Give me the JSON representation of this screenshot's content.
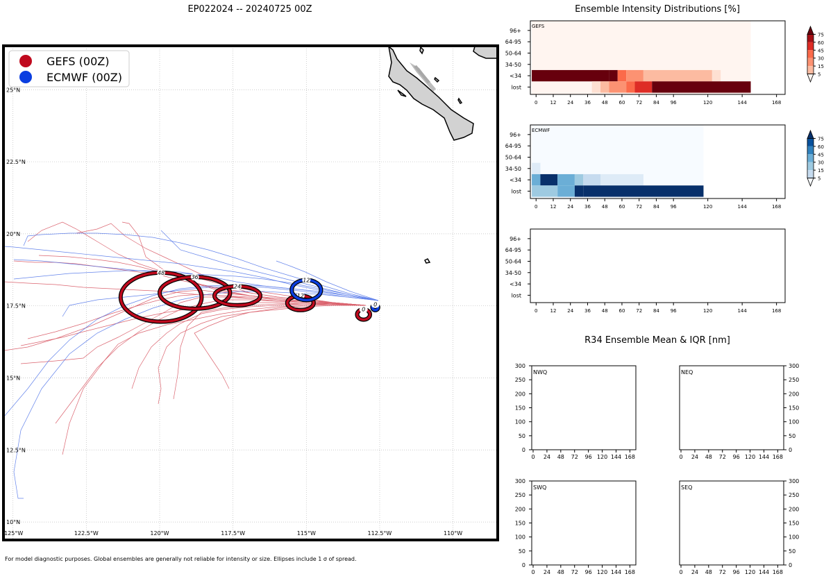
{
  "map": {
    "title": "EP022024 -- 20240725 00Z",
    "lon_min": -125.3,
    "lon_max": -108.5,
    "lat_min": 9.4,
    "lat_max": 26.5,
    "lon_ticks": [
      -125,
      -122.5,
      -120,
      -117.5,
      -115,
      -112.5,
      -110
    ],
    "lon_labels": [
      "125°W",
      "122.5°W",
      "120°W",
      "117.5°W",
      "115°W",
      "112.5°W",
      "110°W"
    ],
    "lat_ticks": [
      10,
      12.5,
      15,
      17.5,
      20,
      22.5,
      25
    ],
    "lat_labels": [
      "10°N",
      "12.5°N",
      "15°N",
      "17.5°N",
      "20°N",
      "22.5°N",
      "25°N"
    ],
    "legend": [
      {
        "label": "GEFS (00Z)",
        "color": "#c00a1e"
      },
      {
        "label": "ECMWF (00Z)",
        "color": "#0a3ee0"
      }
    ],
    "footnote": "For model diagnostic purposes. Global ensembles are generally not reliable for intensity or size. Ellipses include 1 σ of spread.",
    "colors": {
      "gefs_track": "#d23c4a",
      "ecmwf_track": "#3c64e6",
      "land": "#d2d2d2"
    },
    "gefs_ellipses": [
      {
        "hour": "0",
        "lon": -113.05,
        "lat": 17.2,
        "rlon": 0.22,
        "rlat": 0.18
      },
      {
        "hour": "12",
        "lon": -115.2,
        "lat": 17.6,
        "rlon": 0.45,
        "rlat": 0.25
      },
      {
        "hour": "24",
        "lon": -117.35,
        "lat": 17.85,
        "rlon": 0.78,
        "rlat": 0.33
      },
      {
        "hour": "36",
        "lon": -118.8,
        "lat": 17.95,
        "rlon": 1.2,
        "rlat": 0.55
      },
      {
        "hour": "48",
        "lon": -119.95,
        "lat": 17.8,
        "rlon": 1.38,
        "rlat": 0.85
      }
    ],
    "ecmwf_ellipses": [
      {
        "hour": "0",
        "lon": -112.65,
        "lat": 17.45,
        "rlon": 0.1,
        "rlat": 0.1
      },
      {
        "hour": "12",
        "lon": -115.0,
        "lat": 18.05,
        "rlon": 0.5,
        "rlat": 0.35
      }
    ]
  },
  "intensity": {
    "title": "Ensemble Intensity Distributions [%]",
    "row_labels": [
      "96+",
      "64-95",
      "50-64",
      "34-50",
      "<34",
      "lost"
    ],
    "x_ticks": [
      0,
      12,
      24,
      36,
      48,
      60,
      72,
      84,
      96,
      120,
      144,
      168
    ],
    "x_max": 174,
    "panels": [
      {
        "label": "GEFS",
        "cmap": "reds",
        "max_hour": 150,
        "cells": [
          {
            "row": "<34",
            "t0": -3,
            "t1": 51,
            "value": 95
          },
          {
            "row": "<34",
            "t0": 51,
            "t1": 57,
            "value": 80
          },
          {
            "row": "<34",
            "t0": 57,
            "t1": 63,
            "value": 50
          },
          {
            "row": "<34",
            "t0": 63,
            "t1": 75,
            "value": 40
          },
          {
            "row": "<34",
            "t0": 75,
            "t1": 123,
            "value": 25
          },
          {
            "row": "<34",
            "t0": 123,
            "t1": 129,
            "value": 10
          },
          {
            "row": "lost",
            "t0": 39,
            "t1": 45,
            "value": 10
          },
          {
            "row": "lost",
            "t0": 45,
            "t1": 51,
            "value": 20
          },
          {
            "row": "lost",
            "t0": 51,
            "t1": 63,
            "value": 40
          },
          {
            "row": "lost",
            "t0": 63,
            "t1": 69,
            "value": 50
          },
          {
            "row": "lost",
            "t0": 69,
            "t1": 81,
            "value": 70
          },
          {
            "row": "lost",
            "t0": 81,
            "t1": 150,
            "value": 95
          }
        ]
      },
      {
        "label": "ECMWF",
        "cmap": "blues",
        "max_hour": 117,
        "cells": [
          {
            "row": "34-50",
            "t0": -3,
            "t1": 3,
            "value": 10
          },
          {
            "row": "<34",
            "t0": -3,
            "t1": 3,
            "value": 50
          },
          {
            "row": "<34",
            "t0": 3,
            "t1": 15,
            "value": 80
          },
          {
            "row": "<34",
            "t0": 15,
            "t1": 27,
            "value": 55
          },
          {
            "row": "<34",
            "t0": 27,
            "t1": 33,
            "value": 35
          },
          {
            "row": "<34",
            "t0": 33,
            "t1": 45,
            "value": 25
          },
          {
            "row": "<34",
            "t0": 45,
            "t1": 75,
            "value": 12
          },
          {
            "row": "lost",
            "t0": -3,
            "t1": 15,
            "value": 40
          },
          {
            "row": "lost",
            "t0": 15,
            "t1": 27,
            "value": 55
          },
          {
            "row": "lost",
            "t0": 27,
            "t1": 33,
            "value": 75
          },
          {
            "row": "lost",
            "t0": 33,
            "t1": 117,
            "value": 95
          }
        ]
      },
      {
        "label": "",
        "cmap": "none",
        "max_hour": 0,
        "cells": []
      }
    ],
    "colorbar_ticks": [
      5,
      15,
      30,
      45,
      60,
      75
    ],
    "colorbar_colors_reds": [
      "#fee0d2",
      "#fcbba1",
      "#fc9272",
      "#fb6a4a",
      "#de2d26",
      "#a50f15"
    ],
    "colorbar_colors_blues": [
      "#deebf7",
      "#c6dbef",
      "#9ecae1",
      "#6baed6",
      "#3182bd",
      "#08519c"
    ]
  },
  "r34": {
    "title": "R34 Ensemble Mean & IQR [nm]",
    "y_ticks": [
      0,
      50,
      100,
      150,
      200,
      250,
      300
    ],
    "x_ticks": [
      0,
      24,
      48,
      72,
      96,
      120,
      144,
      168
    ],
    "quadrants": [
      "NWQ",
      "NEQ",
      "SWQ",
      "SEQ"
    ]
  }
}
